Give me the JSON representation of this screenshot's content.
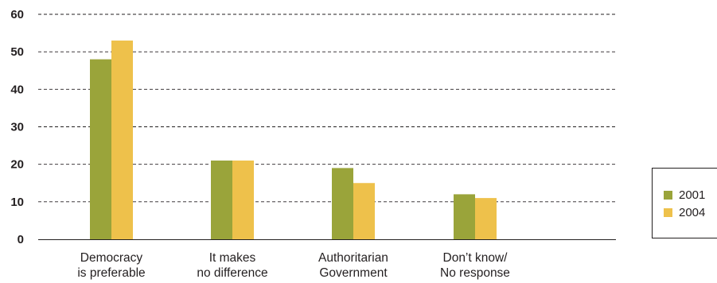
{
  "chart_data": {
    "type": "bar",
    "categories": [
      [
        "Democracy",
        "is preferable"
      ],
      [
        "It makes",
        "no difference"
      ],
      [
        "Authoritarian",
        "Government"
      ],
      [
        "Don’t know/",
        "No response"
      ]
    ],
    "series": [
      {
        "name": "2001",
        "values": [
          48,
          21,
          19,
          12
        ],
        "color": "#9aa43a"
      },
      {
        "name": "2004",
        "values": [
          53,
          21,
          15,
          11
        ],
        "color": "#eec14b"
      }
    ],
    "ylim": [
      0,
      60
    ],
    "yticks": [
      0,
      10,
      20,
      30,
      40,
      50,
      60
    ],
    "grid": true,
    "grid_style": "dashed",
    "legend_position": "right"
  }
}
